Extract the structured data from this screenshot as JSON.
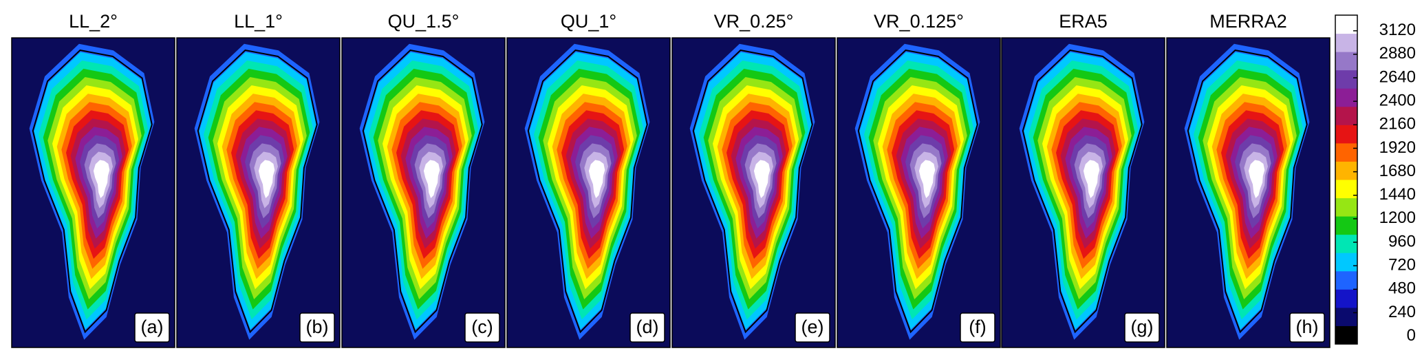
{
  "chart_data": {
    "type": "map-panels",
    "panels": [
      {
        "title": "LL_2°",
        "label": "(a)"
      },
      {
        "title": "LL_1°",
        "label": "(b)"
      },
      {
        "title": "QU_1.5°",
        "label": "(c)"
      },
      {
        "title": "QU_1°",
        "label": "(d)"
      },
      {
        "title": "VR_0.25°",
        "label": "(e)"
      },
      {
        "title": "VR_0.125°",
        "label": "(f)"
      },
      {
        "title": "ERA5",
        "label": "(g)"
      },
      {
        "title": "MERRA2",
        "label": "(h)"
      }
    ],
    "colorbar": {
      "clim": [
        -80,
        3280
      ],
      "ticks": [
        0,
        240,
        480,
        720,
        960,
        1200,
        1440,
        1680,
        1920,
        2160,
        2400,
        2640,
        2880,
        3120
      ]
    },
    "colormap": [
      "#000000",
      "#0a0a6e",
      "#1414c8",
      "#1e64ff",
      "#00c8ff",
      "#00e6b4",
      "#14c814",
      "#96e614",
      "#ffff00",
      "#ffb400",
      "#ff6400",
      "#e61414",
      "#b4144b",
      "#8c1e96",
      "#6e3caa",
      "#9678c8",
      "#c8b4e6",
      "#ffffff"
    ]
  }
}
